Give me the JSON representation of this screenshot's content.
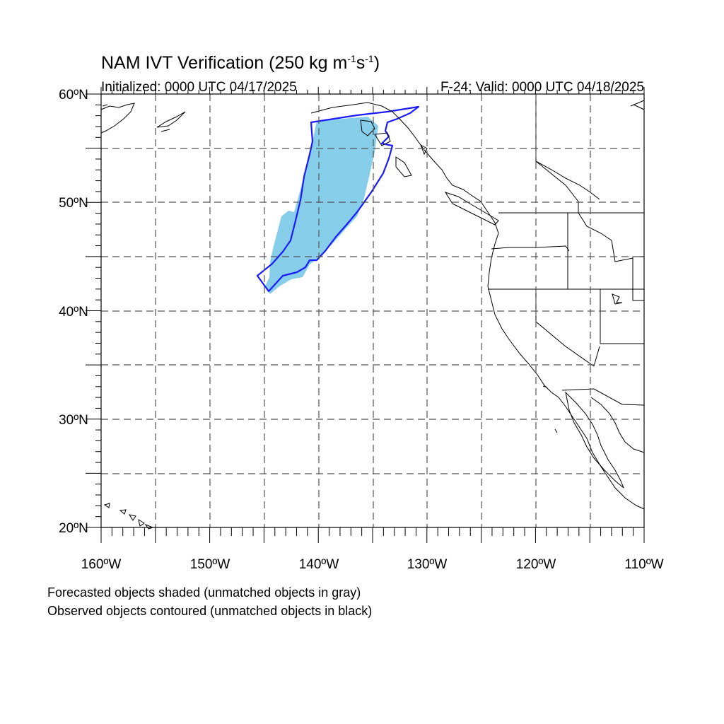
{
  "title": {
    "text": "NAM IVT Verification (250 kg m",
    "units_sup1": "-1",
    "units_mid": "s",
    "units_sup2": "-1",
    "units_end": ")"
  },
  "initialized": "Initialized: 0000 UTC 04/17/2025",
  "valid": "F-24: Valid: 0000 UTC 04/18/2025",
  "map": {
    "lon_range": [
      -160,
      -110
    ],
    "lat_range": [
      20,
      60
    ],
    "grid_spacing_deg": 5,
    "grid_style": "dashed",
    "lat_labels": [
      "60ºN",
      "50ºN",
      "40ºN",
      "30ºN",
      "20ºN"
    ],
    "lon_labels": [
      "160ºW",
      "150ºW",
      "140ºW",
      "130ºW",
      "120ºW",
      "110ºW"
    ],
    "colors": {
      "forecast_fill": "#87ceeb",
      "observed_contour": "#1a1aff",
      "coastline": "#000000",
      "grid": "#555555"
    }
  },
  "notes": {
    "forecast": "Forecasted objects shaded (unmatched objects in gray)",
    "observed": "Observed objects contoured (unmatched objects in black)"
  }
}
